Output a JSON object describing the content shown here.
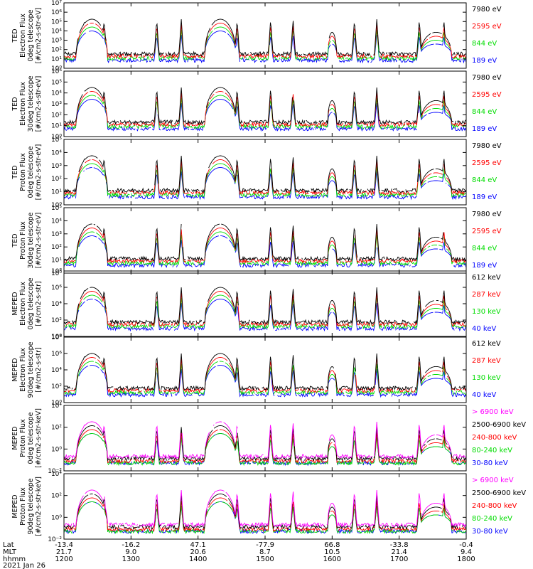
{
  "chart_data": {
    "type": "line",
    "x_axis": {
      "row_labels": [
        "Lat",
        "MLT",
        "hhmm"
      ],
      "columns": [
        {
          "lat": "-13.4",
          "mlt": "21.7",
          "hhmm": "1200"
        },
        {
          "lat": "-16.2",
          "mlt": "9.0",
          "hhmm": "1300"
        },
        {
          "lat": "47.1",
          "mlt": "20.6",
          "hhmm": "1400"
        },
        {
          "lat": "-77.9",
          "mlt": "8.7",
          "hhmm": "1500"
        },
        {
          "lat": "66.8",
          "mlt": "10.5",
          "hhmm": "1600"
        },
        {
          "lat": "-33.8",
          "mlt": "21.4",
          "hhmm": "1700"
        },
        {
          "lat": "-0.4",
          "mlt": "9.4",
          "hhmm": "1800"
        }
      ],
      "date": "2021 Jan 26",
      "xlim_minutes": [
        720,
        1080
      ]
    },
    "colors": {
      "black": "#000000",
      "red": "#ff0000",
      "green": "#00dd00",
      "blue": "#0000ff",
      "magenta": "#ff00ff"
    },
    "panels": [
      {
        "ylabel": [
          "TED",
          "Electron Flux",
          "0deg telescope",
          "[#/cm2-s-str-eV]"
        ],
        "yticks": [
          "10⁷",
          "10⁶",
          "10⁵",
          "10⁴",
          "10³",
          "10²",
          "10¹",
          "10⁰"
        ],
        "ylog": [
          0,
          7
        ],
        "legend": [
          {
            "label": "7980 eV",
            "color": "black"
          },
          {
            "label": "2595 eV",
            "color": "red"
          },
          {
            "label": "844 eV",
            "color": "green"
          },
          {
            "label": "189 eV",
            "color": "blue"
          }
        ]
      },
      {
        "ylabel": [
          "TED",
          "Electron Flux",
          "30deg telescope",
          "[#/cm2-s-str-eV]"
        ],
        "yticks": [
          "10⁶",
          "10⁵",
          "10⁴",
          "10³",
          "10²",
          "10¹",
          "10⁰"
        ],
        "ylog": [
          0,
          6
        ],
        "legend": [
          {
            "label": "7980 eV",
            "color": "black"
          },
          {
            "label": "2595 eV",
            "color": "red"
          },
          {
            "label": "844 eV",
            "color": "green"
          },
          {
            "label": "189 eV",
            "color": "blue"
          }
        ]
      },
      {
        "ylabel": [
          "TED",
          "Proton Flux",
          "0deg telescope",
          "[#/cm2-s-str-eV]"
        ],
        "yticks": [
          "10⁵",
          "10⁴",
          "10³",
          "10²",
          "10¹",
          "10⁰"
        ],
        "ylog": [
          0,
          5
        ],
        "legend": [
          {
            "label": "7980 eV",
            "color": "black"
          },
          {
            "label": "2595 eV",
            "color": "red"
          },
          {
            "label": "844 eV",
            "color": "green"
          },
          {
            "label": "189 eV",
            "color": "blue"
          }
        ]
      },
      {
        "ylabel": [
          "TED",
          "Proton Flux",
          "30deg telescope",
          "[#/cm2-s-str-eV]"
        ],
        "yticks": [
          "10⁵",
          "10⁴",
          "10³",
          "10²",
          "10¹",
          "10⁰"
        ],
        "ylog": [
          0,
          5
        ],
        "legend": [
          {
            "label": "7980 eV",
            "color": "black"
          },
          {
            "label": "2595 eV",
            "color": "red"
          },
          {
            "label": "844 eV",
            "color": "green"
          },
          {
            "label": "189 eV",
            "color": "blue"
          }
        ]
      },
      {
        "ylabel": [
          "MEPED",
          "Electron Flux",
          "0deg telescope",
          "[#/cm2-s-str]"
        ],
        "yticks": [
          "10⁸",
          "10⁶",
          "10⁴",
          "10²",
          "10⁰"
        ],
        "ylog": [
          0,
          8
        ],
        "legend": [
          {
            "label": "612 keV",
            "color": "black"
          },
          {
            "label": "287 keV",
            "color": "red"
          },
          {
            "label": "130 keV",
            "color": "green"
          },
          {
            "label": "40 keV",
            "color": "blue"
          }
        ]
      },
      {
        "ylabel": [
          "MEPED",
          "Electron Flux",
          "90deg telescope",
          "[#/cm2-s-str]"
        ],
        "yticks": [
          "10⁸",
          "10⁶",
          "10⁴",
          "10²",
          "10⁰"
        ],
        "ylog": [
          0,
          8
        ],
        "legend": [
          {
            "label": "612 keV",
            "color": "black"
          },
          {
            "label": "287 keV",
            "color": "red"
          },
          {
            "label": "130 keV",
            "color": "green"
          },
          {
            "label": "40 keV",
            "color": "blue"
          }
        ]
      },
      {
        "ylabel": [
          "MEPED",
          "Proton Flux",
          "0deg telescope",
          "[#/cm2-s-str-keV]"
        ],
        "yticks": [
          "10⁴",
          "10²",
          "10⁰",
          "10⁻²"
        ],
        "ylog": [
          -3,
          6
        ],
        "legend": [
          {
            "label": "> 6900 keV",
            "color": "magenta"
          },
          {
            "label": "2500-6900 keV",
            "color": "black"
          },
          {
            "label": "240-800 keV",
            "color": "red"
          },
          {
            "label": "80-240 keV",
            "color": "green"
          },
          {
            "label": "30-80 keV",
            "color": "blue"
          }
        ]
      },
      {
        "ylabel": [
          "MEPED",
          "Proton Flux",
          "90deg telescope",
          "[#/cm2-s-str-keV]"
        ],
        "yticks": [
          "10⁴",
          "10²",
          "10⁰",
          "10⁻²"
        ],
        "ylog": [
          -3,
          6
        ],
        "legend": [
          {
            "label": "> 6900 keV",
            "color": "magenta"
          },
          {
            "label": "2500-6900 keV",
            "color": "black"
          },
          {
            "label": "240-800 keV",
            "color": "red"
          },
          {
            "label": "80-240 keV",
            "color": "green"
          },
          {
            "label": "30-80 keV",
            "color": "blue"
          }
        ]
      }
    ]
  }
}
